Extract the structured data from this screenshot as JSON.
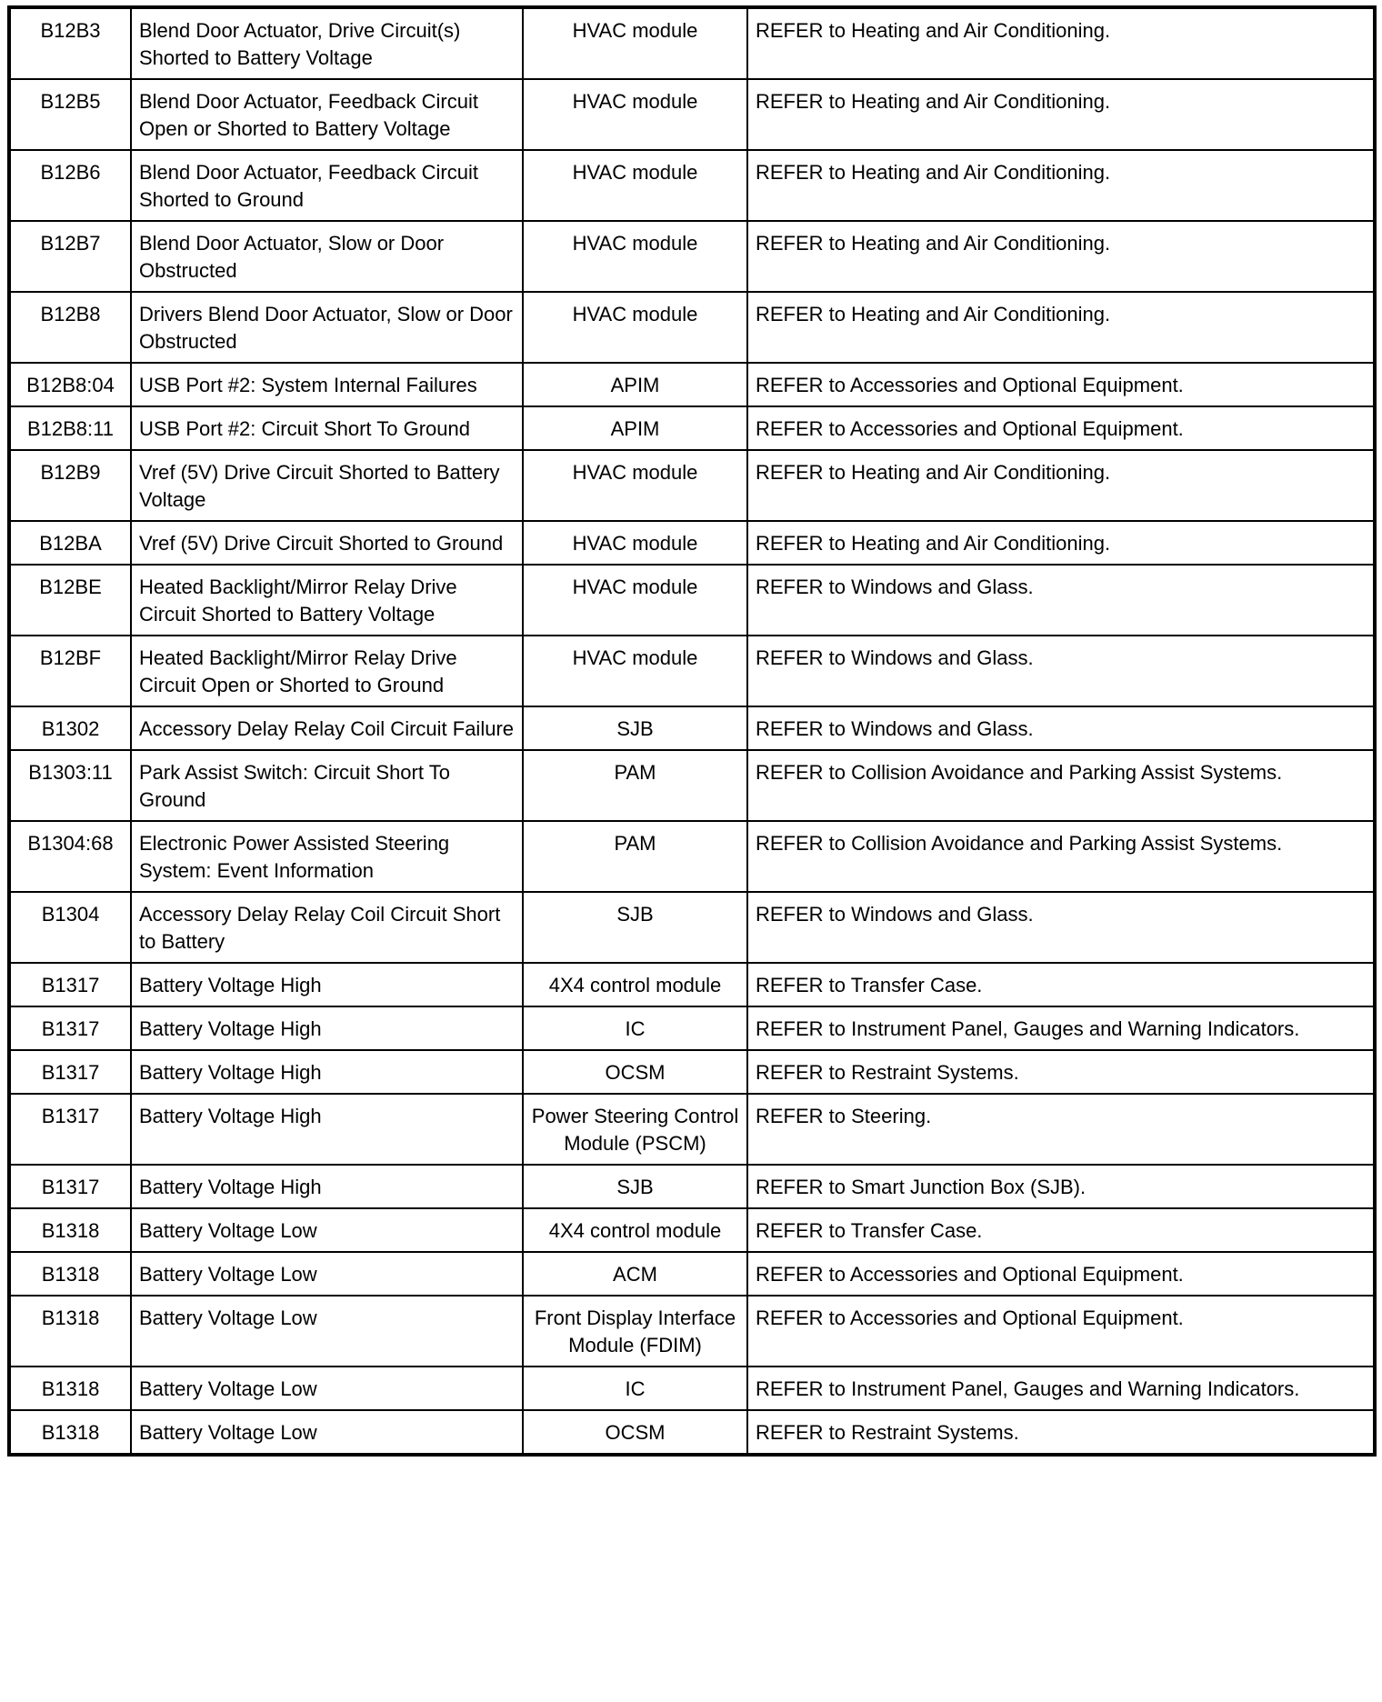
{
  "table": {
    "rows": [
      {
        "code": "B12B3",
        "description": "Blend Door Actuator, Drive Circuit(s) Shorted to Battery Voltage",
        "module": "HVAC module",
        "action": "REFER to Heating and Air Conditioning."
      },
      {
        "code": "B12B5",
        "description": "Blend Door Actuator, Feedback Circuit Open or Shorted to Battery Voltage",
        "module": "HVAC module",
        "action": "REFER to Heating and Air Conditioning."
      },
      {
        "code": "B12B6",
        "description": "Blend Door Actuator, Feedback Circuit Shorted to Ground",
        "module": "HVAC module",
        "action": "REFER to Heating and Air Conditioning."
      },
      {
        "code": "B12B7",
        "description": "Blend Door Actuator, Slow or Door Obstructed",
        "module": "HVAC module",
        "action": "REFER to Heating and Air Conditioning."
      },
      {
        "code": "B12B8",
        "description": "Drivers Blend Door Actuator, Slow or Door Obstructed",
        "module": "HVAC module",
        "action": "REFER to Heating and Air Conditioning."
      },
      {
        "code": "B12B8:04",
        "description": "USB Port #2: System Internal Failures",
        "module": "APIM",
        "action": "REFER to Accessories and Optional Equipment."
      },
      {
        "code": "B12B8:11",
        "description": "USB Port #2: Circuit Short To Ground",
        "module": "APIM",
        "action": "REFER to Accessories and Optional Equipment."
      },
      {
        "code": "B12B9",
        "description": "Vref (5V) Drive Circuit Shorted to Battery Voltage",
        "module": "HVAC module",
        "action": "REFER to Heating and Air Conditioning."
      },
      {
        "code": "B12BA",
        "description": "Vref (5V) Drive Circuit Shorted to Ground",
        "module": "HVAC module",
        "action": "REFER to Heating and Air Conditioning."
      },
      {
        "code": "B12BE",
        "description": "Heated Backlight/Mirror Relay Drive Circuit Shorted to Battery Voltage",
        "module": "HVAC module",
        "action": "REFER to Windows and Glass."
      },
      {
        "code": "B12BF",
        "description": "Heated Backlight/Mirror Relay Drive Circuit Open or Shorted to Ground",
        "module": "HVAC module",
        "action": "REFER to Windows and Glass."
      },
      {
        "code": "B1302",
        "description": "Accessory Delay Relay Coil Circuit Failure",
        "module": "SJB",
        "action": "REFER to Windows and Glass."
      },
      {
        "code": "B1303:11",
        "description": "Park Assist Switch: Circuit Short To Ground",
        "module": "PAM",
        "action": "REFER to Collision Avoidance and Parking Assist Systems."
      },
      {
        "code": "B1304:68",
        "description": "Electronic Power Assisted Steering System: Event Information",
        "module": "PAM",
        "action": "REFER to Collision Avoidance and Parking Assist Systems."
      },
      {
        "code": "B1304",
        "description": "Accessory Delay Relay Coil Circuit Short to Battery",
        "module": "SJB",
        "action": "REFER to Windows and Glass."
      },
      {
        "code": "B1317",
        "description": "Battery Voltage High",
        "module": "4X4 control module",
        "action": "REFER to Transfer Case."
      },
      {
        "code": "B1317",
        "description": "Battery Voltage High",
        "module": "IC",
        "action": "REFER to Instrument Panel, Gauges and Warning Indicators."
      },
      {
        "code": "B1317",
        "description": "Battery Voltage High",
        "module": "OCSM",
        "action": "REFER to Restraint Systems."
      },
      {
        "code": "B1317",
        "description": "Battery Voltage High",
        "module": "Power Steering Control Module (PSCM)",
        "action": "REFER to Steering."
      },
      {
        "code": "B1317",
        "description": "Battery Voltage High",
        "module": "SJB",
        "action": "REFER to Smart Junction Box (SJB)."
      },
      {
        "code": "B1318",
        "description": "Battery Voltage Low",
        "module": "4X4 control module",
        "action": "REFER to Transfer Case."
      },
      {
        "code": "B1318",
        "description": "Battery Voltage Low",
        "module": "ACM",
        "action": "REFER to Accessories and Optional Equipment."
      },
      {
        "code": "B1318",
        "description": "Battery Voltage Low",
        "module": "Front Display Interface Module (FDIM)",
        "action": "REFER to Accessories and Optional Equipment."
      },
      {
        "code": "B1318",
        "description": "Battery Voltage Low",
        "module": "IC",
        "action": "REFER to Instrument Panel, Gauges and Warning Indicators."
      },
      {
        "code": "B1318",
        "description": "Battery Voltage Low",
        "module": "OCSM",
        "action": "REFER to Restraint Systems."
      }
    ]
  }
}
